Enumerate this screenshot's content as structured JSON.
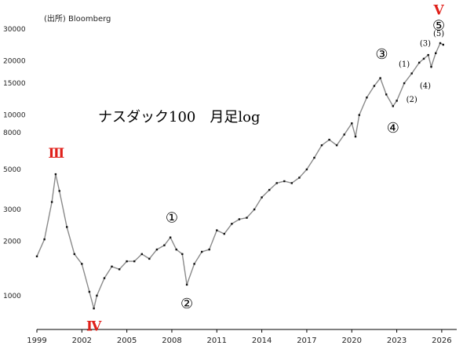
{
  "source_label": "(出所) Bloomberg",
  "chart_data": {
    "type": "line",
    "subtype": "candlestick-monthly",
    "title": "ナスダック100　月足log",
    "y_scale": "log",
    "ylim": [
      650,
      40000
    ],
    "xlim": [
      1999.0,
      2027.0
    ],
    "y_ticks": [
      {
        "value": 1000,
        "label": "1000"
      },
      {
        "value": 2000,
        "label": "2000"
      },
      {
        "value": 3000,
        "label": "3000"
      },
      {
        "value": 5000,
        "label": "5000"
      },
      {
        "value": 8000,
        "label": "8000"
      },
      {
        "value": 10000,
        "label": "10000"
      },
      {
        "value": 15000,
        "label": "15000"
      },
      {
        "value": 20000,
        "label": "20000"
      },
      {
        "value": 30000,
        "label": "30000"
      }
    ],
    "x_ticks": [
      {
        "value": 1999,
        "label": "1999"
      },
      {
        "value": 2002,
        "label": "2002"
      },
      {
        "value": 2005,
        "label": "2005"
      },
      {
        "value": 2008,
        "label": "2008"
      },
      {
        "value": 2011,
        "label": "2011"
      },
      {
        "value": 2014,
        "label": "2014"
      },
      {
        "value": 2017,
        "label": "2017"
      },
      {
        "value": 2020,
        "label": "2020"
      },
      {
        "value": 2023,
        "label": "2023"
      },
      {
        "value": 2026,
        "label": "2026"
      }
    ],
    "x": [
      1999.0,
      1999.5,
      2000.0,
      2000.25,
      2000.5,
      2001.0,
      2001.5,
      2002.0,
      2002.5,
      2002.8,
      2003.0,
      2003.5,
      2004.0,
      2004.5,
      2005.0,
      2005.5,
      2006.0,
      2006.5,
      2007.0,
      2007.5,
      2007.9,
      2008.3,
      2008.7,
      2009.0,
      2009.5,
      2010.0,
      2010.5,
      2011.0,
      2011.5,
      2012.0,
      2012.5,
      2013.0,
      2013.5,
      2014.0,
      2014.5,
      2015.0,
      2015.5,
      2016.0,
      2016.5,
      2017.0,
      2017.5,
      2018.0,
      2018.5,
      2019.0,
      2019.5,
      2020.0,
      2020.25,
      2020.5,
      2021.0,
      2021.5,
      2021.9,
      2022.3,
      2022.75,
      2023.0,
      2023.5,
      2024.0,
      2024.5,
      2024.8,
      2025.1,
      2025.3,
      2025.6,
      2025.9,
      2026.1
    ],
    "values": [
      1650,
      2050,
      3300,
      4700,
      3800,
      2400,
      1700,
      1500,
      1050,
      850,
      1000,
      1250,
      1450,
      1400,
      1550,
      1550,
      1700,
      1600,
      1800,
      1900,
      2100,
      1800,
      1700,
      1150,
      1500,
      1750,
      1800,
      2300,
      2200,
      2500,
      2650,
      2700,
      3000,
      3500,
      3850,
      4200,
      4300,
      4200,
      4500,
      5000,
      5800,
      6800,
      7300,
      6800,
      7800,
      9000,
      7600,
      10000,
      12500,
      14500,
      16000,
      13000,
      11200,
      12000,
      15000,
      17000,
      19500,
      20500,
      21500,
      18500,
      22000,
      25000,
      24500
    ],
    "annotations": [
      {
        "label": "Ⅲ",
        "style": "red",
        "x": 2000.3,
        "y": 5800
      },
      {
        "label": "Ⅳ",
        "style": "red",
        "x": 2002.8,
        "y": 640
      },
      {
        "label": "Ⅴ",
        "style": "red",
        "x": 2025.8,
        "y": 36000
      },
      {
        "label": "①",
        "style": "circled",
        "x": 2008.0,
        "y": 2550
      },
      {
        "label": "②",
        "style": "circled",
        "x": 2009.0,
        "y": 850
      },
      {
        "label": "③",
        "style": "circled",
        "x": 2022.0,
        "y": 20500
      },
      {
        "label": "④",
        "style": "circled",
        "x": 2022.75,
        "y": 8000
      },
      {
        "label": "⑤",
        "style": "circled",
        "x": 2025.8,
        "y": 29500
      },
      {
        "label": "(1)",
        "style": "paren",
        "x": 2023.5,
        "y": 18500
      },
      {
        "label": "(2)",
        "style": "paren",
        "x": 2024.0,
        "y": 11800
      },
      {
        "label": "(3)",
        "style": "paren",
        "x": 2024.9,
        "y": 24200
      },
      {
        "label": "(4)",
        "style": "paren",
        "x": 2024.9,
        "y": 14100
      },
      {
        "label": "(5)",
        "style": "paren",
        "x": 2025.8,
        "y": 27400
      }
    ],
    "grid": false,
    "legend": "none"
  }
}
